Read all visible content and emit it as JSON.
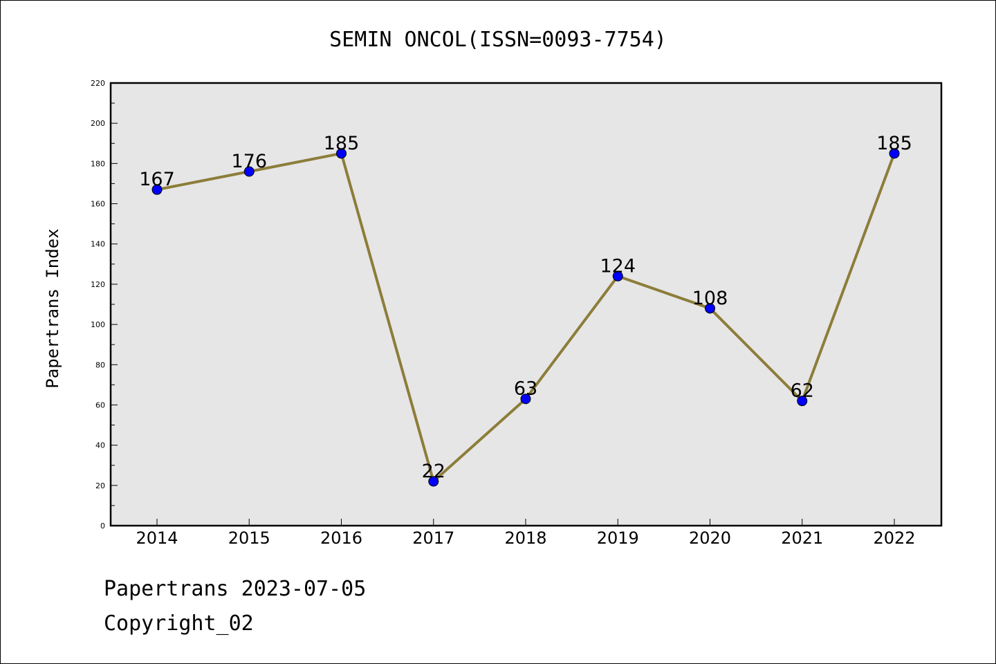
{
  "chart_data": {
    "type": "line",
    "title": "SEMIN ONCOL(ISSN=0093-7754)",
    "xlabel": "",
    "ylabel": "Papertrans Index",
    "categories": [
      "2014",
      "2015",
      "2016",
      "2017",
      "2018",
      "2019",
      "2020",
      "2021",
      "2022"
    ],
    "series": [
      {
        "values": [
          167,
          176,
          185,
          22,
          63,
          124,
          108,
          62,
          185
        ],
        "data_labels": [
          "167",
          "176",
          "185",
          "22",
          "63",
          "124",
          "108",
          "62",
          "185"
        ]
      }
    ],
    "ylim": [
      0,
      220
    ],
    "yticks": [
      "0",
      "20",
      "40",
      "60",
      "80",
      "100",
      "120",
      "140",
      "160",
      "180",
      "200",
      "220"
    ],
    "grid": false,
    "colors": {
      "line": "#8c7d3a",
      "marker": "#0000ff",
      "plot_background": "#e6e6e6"
    }
  },
  "footer": {
    "line1": "Papertrans 2023-07-05",
    "line2": "Copyright_02"
  }
}
